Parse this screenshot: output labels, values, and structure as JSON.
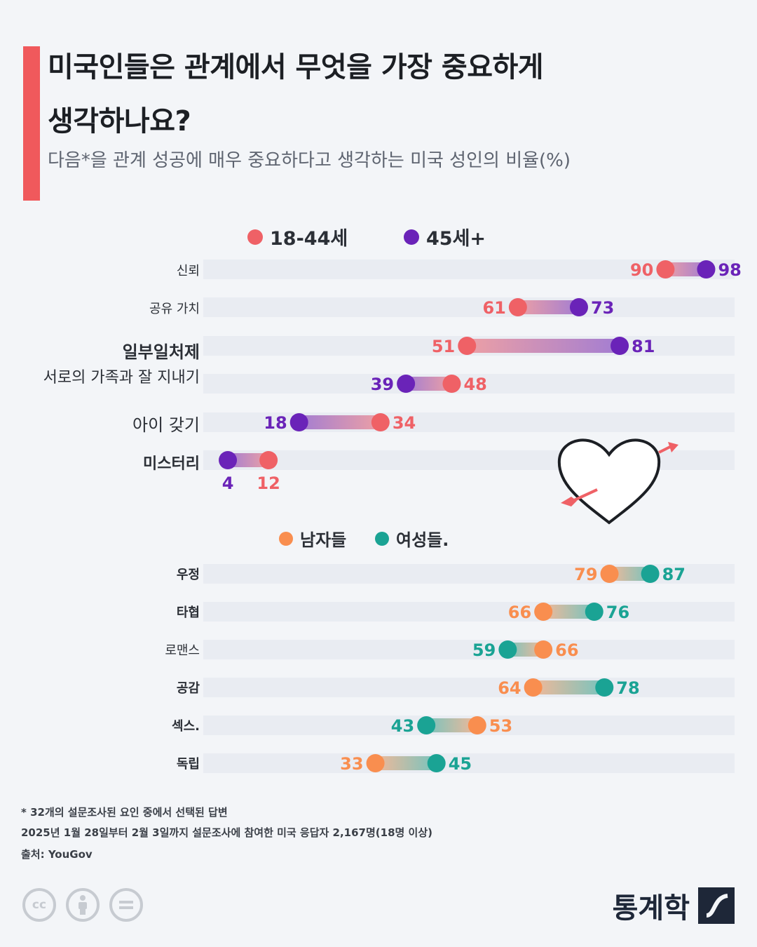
{
  "header": {
    "title_line1": "미국인들은 관계에서 무엇을 가장 중요하게",
    "title_line2": "생각하나요?",
    "subtitle": "다음*을 관계 성공에 매우 중요하다고 생각하는 미국 성인의 비율(%)"
  },
  "colors": {
    "accent": "#f0595c",
    "age_18_44": "#ef6166",
    "age_45_plus": "#6a23b8",
    "men": "#f98e4f",
    "women": "#1aa394",
    "track": "#e9ecf2"
  },
  "chart_data": [
    {
      "type": "dumbbell",
      "scale": [
        0,
        100
      ],
      "series": [
        {
          "name": "18-44세",
          "values": [
            90,
            61,
            51,
            48,
            34,
            12
          ]
        },
        {
          "name": "45세+",
          "values": [
            98,
            73,
            81,
            39,
            18,
            4
          ]
        }
      ],
      "categories": [
        "신뢰",
        "공유 가치",
        "일부일처제",
        "서로의 가족과 잘 지내기",
        "아이 갖기",
        "미스터리"
      ]
    },
    {
      "type": "dumbbell",
      "scale": [
        0,
        100
      ],
      "series": [
        {
          "name": "남자들",
          "values": [
            79,
            66,
            66,
            64,
            53,
            33
          ]
        },
        {
          "name": "여성들.",
          "values": [
            87,
            76,
            59,
            78,
            43,
            45
          ]
        }
      ],
      "categories": [
        "우정",
        "타협",
        "로맨스",
        "공감",
        "섹스.",
        "독립"
      ]
    }
  ],
  "footnotes": {
    "note1": "* 32개의 설문조사된 요인 중에서 선택된 답변",
    "note2": "2025년 1월 28일부터 2월 3일까지 설문조사에 참여한 미국 응답자 2,167명(18명 이상)",
    "source": "출처: YouGov"
  },
  "license_icons": [
    "cc-icon",
    "person-icon",
    "equals-icon"
  ],
  "brand": {
    "name": "통계학"
  }
}
